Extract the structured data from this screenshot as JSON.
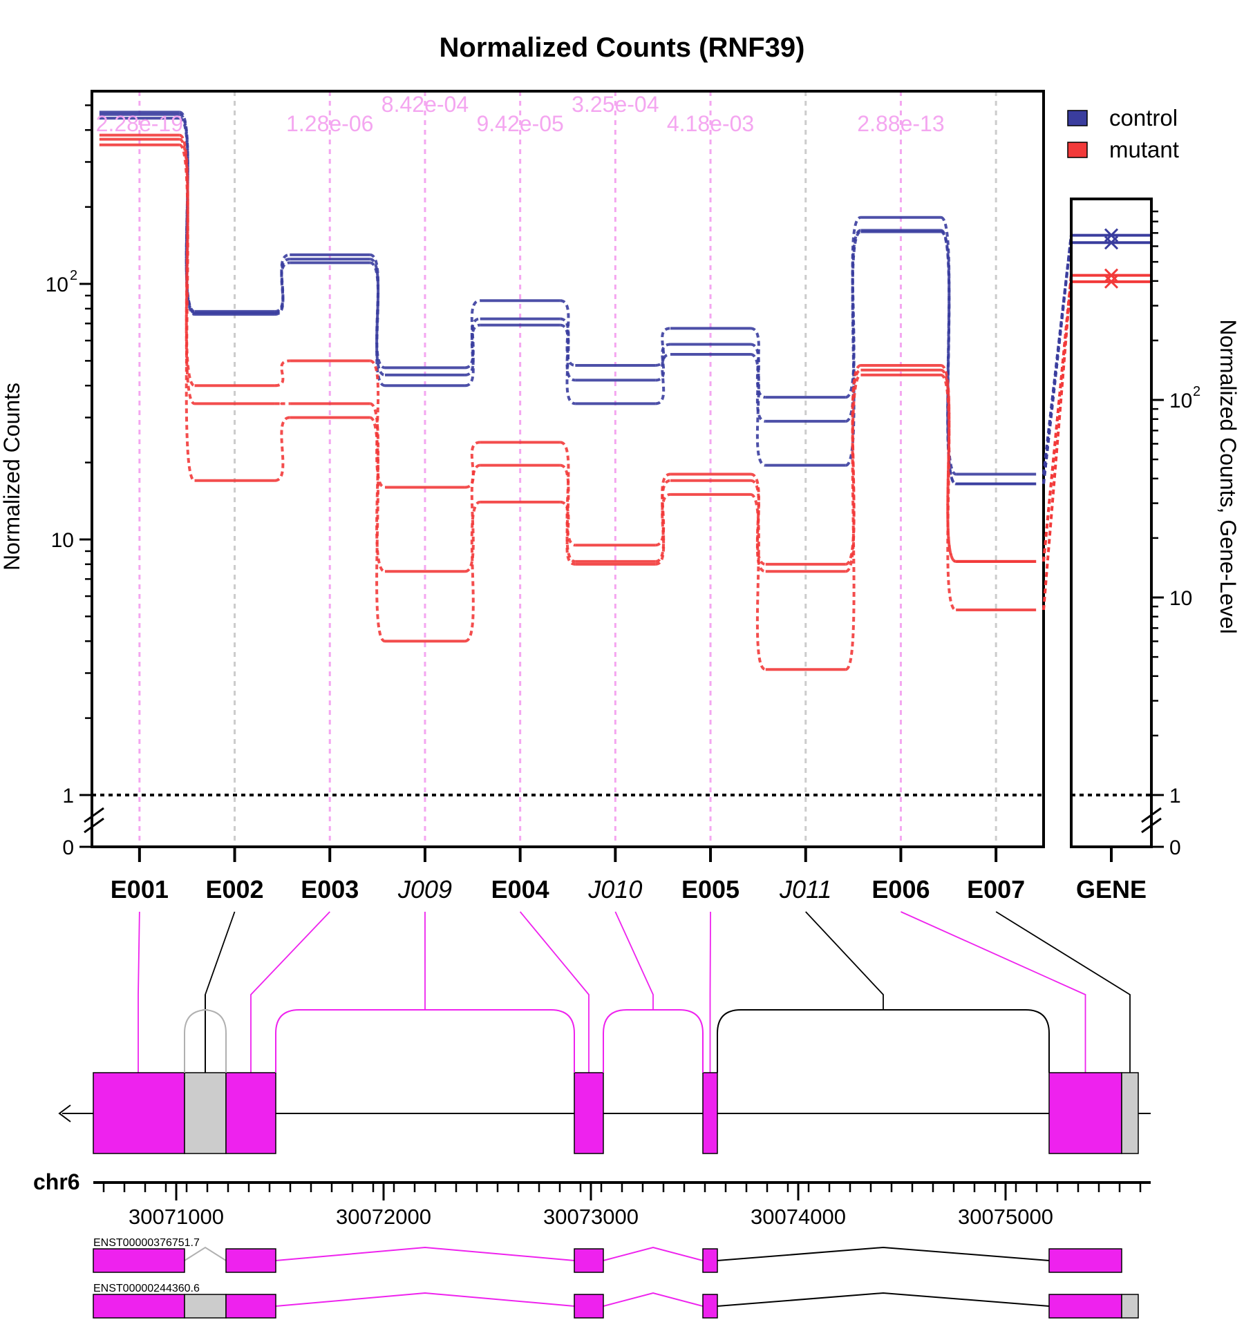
{
  "chart_data": {
    "type": "line",
    "title": "Normalized Counts (RNF39)",
    "ylabel": "Normalized Counts",
    "ylabel_right": "Normalized Counts, Gene-Level",
    "yscale": "log",
    "ylim": [
      0,
      1000
    ],
    "y_ticks": [
      {
        "base": "10",
        "exp": "2",
        "value": 100
      },
      {
        "base": "10",
        "exp": "",
        "value": 10
      },
      {
        "base": "1",
        "exp": "",
        "value": 1
      },
      {
        "base": "0",
        "exp": "",
        "value": 0
      }
    ],
    "y_ticks_right": [
      {
        "base": "10",
        "exp": "2",
        "value": 100
      },
      {
        "base": "10",
        "exp": "",
        "value": 10
      },
      {
        "base": "1",
        "exp": "",
        "value": 1
      },
      {
        "base": "0",
        "exp": "",
        "value": 0
      }
    ],
    "features": [
      {
        "id": "E001",
        "kind": "exon",
        "sig": true,
        "pval": "2.28e-19"
      },
      {
        "id": "E002",
        "kind": "exon",
        "sig": false,
        "pval": ""
      },
      {
        "id": "E003",
        "kind": "exon",
        "sig": true,
        "pval": "1.28e-06"
      },
      {
        "id": "J009",
        "kind": "junction",
        "sig": true,
        "pval": "8.42e-04"
      },
      {
        "id": "E004",
        "kind": "exon",
        "sig": true,
        "pval": "9.42e-05"
      },
      {
        "id": "J010",
        "kind": "junction",
        "sig": true,
        "pval": "3.25e-04"
      },
      {
        "id": "E005",
        "kind": "exon",
        "sig": true,
        "pval": "4.18e-03"
      },
      {
        "id": "J011",
        "kind": "junction",
        "sig": false,
        "pval": ""
      },
      {
        "id": "E006",
        "kind": "exon",
        "sig": true,
        "pval": "2.88e-13"
      },
      {
        "id": "E007",
        "kind": "exon",
        "sig": false,
        "pval": ""
      }
    ],
    "gene_label": "GENE",
    "legend": [
      {
        "name": "control",
        "color": "#3a3d9e"
      },
      {
        "name": "mutant",
        "color": "#f23a3a"
      }
    ],
    "legend_position": "top-right",
    "series": [
      {
        "group": "control",
        "color": "#3a3d9e",
        "values": [
          470,
          78,
          130,
          47,
          86,
          48,
          67,
          36,
          182,
          18
        ]
      },
      {
        "group": "control",
        "color": "#3a3d9e",
        "values": [
          460,
          77,
          125,
          44,
          73,
          42,
          58,
          29,
          162,
          16.5
        ]
      },
      {
        "group": "control",
        "color": "#3a3d9e",
        "values": [
          445,
          76,
          121,
          40,
          69,
          34,
          53,
          19.5,
          160,
          16.5
        ]
      },
      {
        "group": "mutant",
        "color": "#f23a3a",
        "values": [
          382,
          40,
          50,
          16,
          24,
          9.5,
          18,
          8.0,
          48,
          8.2
        ]
      },
      {
        "group": "mutant",
        "color": "#f23a3a",
        "values": [
          368,
          34,
          34,
          7.5,
          19.5,
          8.2,
          17,
          7.5,
          46,
          8.2
        ]
      },
      {
        "group": "mutant",
        "color": "#f23a3a",
        "values": [
          350,
          17,
          30,
          4.0,
          14,
          8.0,
          15,
          3.1,
          44,
          5.3
        ]
      }
    ],
    "gene_level": [
      {
        "group": "control",
        "color": "#3a3d9e",
        "values": [
          155,
          145
        ]
      },
      {
        "group": "mutant",
        "color": "#f23a3a",
        "values": [
          108,
          102
        ]
      }
    ],
    "genome": {
      "chrom": "chr6",
      "range": [
        30070600,
        30075700
      ],
      "tick_labels": [
        "30071000",
        "30072000",
        "30073000",
        "30074000",
        "30075000"
      ],
      "exon_bins": [
        {
          "id": "E001",
          "start": 30070600,
          "end": 30071040,
          "sig": true
        },
        {
          "id": "E002",
          "start": 30071040,
          "end": 30071240,
          "sig": false
        },
        {
          "id": "E003",
          "start": 30071240,
          "end": 30071480,
          "sig": true
        },
        {
          "id": "E004",
          "start": 30072920,
          "end": 30073060,
          "sig": true
        },
        {
          "id": "E005",
          "start": 30073540,
          "end": 30073610,
          "sig": true
        },
        {
          "id": "E006",
          "start": 30075210,
          "end": 30075560,
          "sig": true
        },
        {
          "id": "E007",
          "start": 30075560,
          "end": 30075640,
          "sig": false
        }
      ],
      "junctions": [
        {
          "id": "J002",
          "from": "E001",
          "to": "E003",
          "sig": false
        },
        {
          "id": "J009",
          "from": "E003",
          "to": "E004",
          "sig": true
        },
        {
          "id": "J010",
          "from": "E004",
          "to": "E005",
          "sig": true
        },
        {
          "id": "J011",
          "from": "E005",
          "to": "E006",
          "sig": false
        }
      ],
      "transcripts": [
        {
          "name": "ENST00000376751.7",
          "exons": [
            "E001",
            "E003",
            "E004",
            "E005",
            "E006"
          ]
        },
        {
          "name": "ENST00000244360.6",
          "exons": [
            "E001",
            "E002",
            "E003",
            "E004",
            "E005",
            "E006",
            "E007"
          ]
        }
      ]
    }
  }
}
